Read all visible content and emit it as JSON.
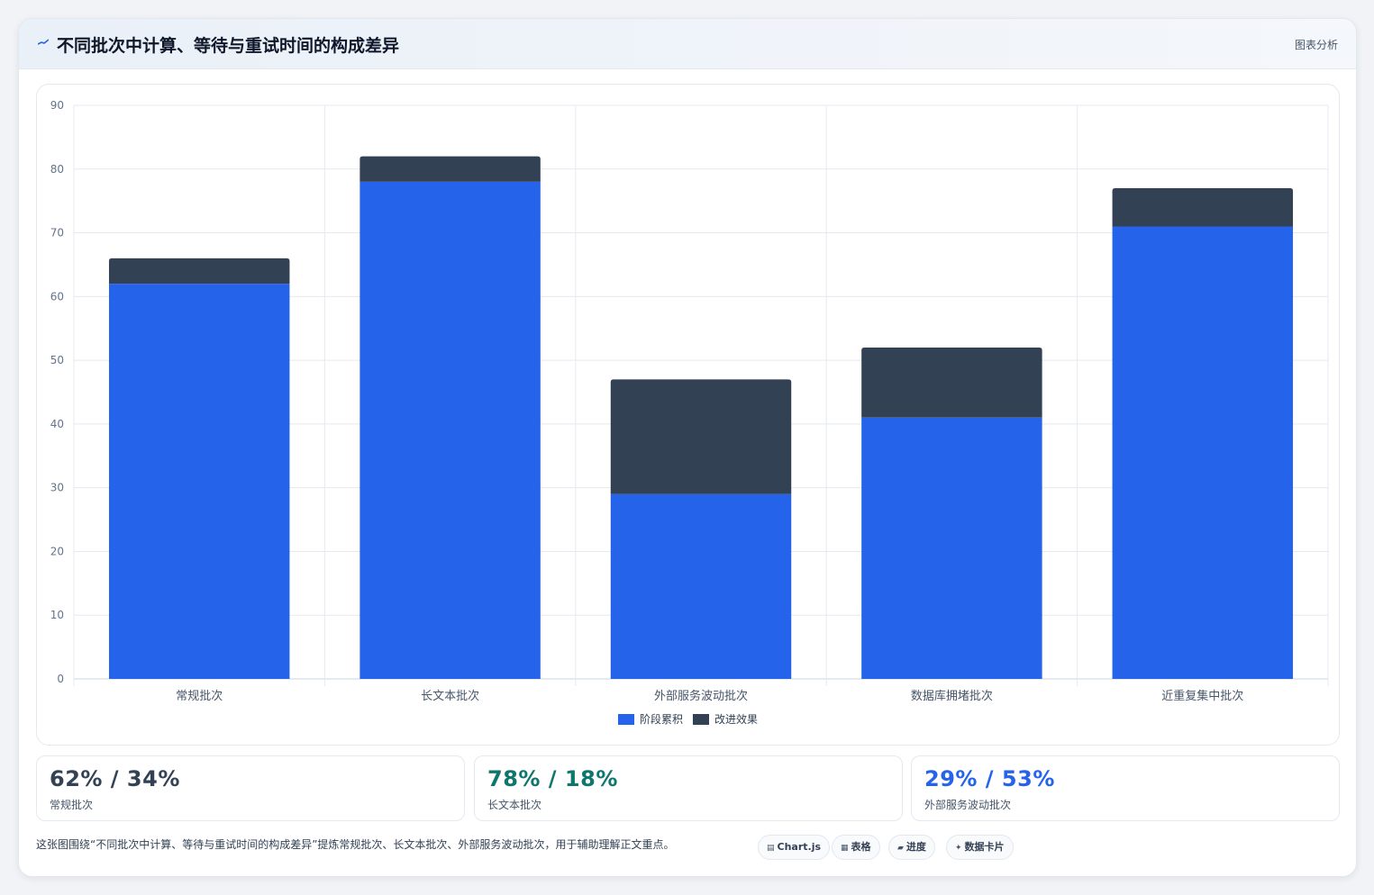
{
  "header": {
    "title": "不同批次中计算、等待与重试时间的构成差异",
    "tag": "图表分析",
    "icon": "sparkline-icon",
    "accent": "#2563eb"
  },
  "chart_data": {
    "type": "bar",
    "stacked": true,
    "categories": [
      "常规批次",
      "长文本批次",
      "外部服务波动批次",
      "数据库拥堵批次",
      "近重复集中批次"
    ],
    "series": [
      {
        "name": "阶段累积",
        "color": "#2563eb",
        "values": [
          62,
          78,
          29,
          41,
          71
        ]
      },
      {
        "name": "改进效果",
        "color": "#334155",
        "values": [
          4,
          4,
          18,
          11,
          6
        ]
      }
    ],
    "ylim": [
      0,
      90
    ],
    "yticks": [
      0,
      10,
      20,
      30,
      40,
      50,
      60,
      70,
      80,
      90
    ],
    "grid": true,
    "legend": "bottom"
  },
  "stats": [
    {
      "value": "62% / 34%",
      "label": "常规批次",
      "color": "#334155"
    },
    {
      "value": "78% / 18%",
      "label": "长文本批次",
      "color": "#0f766e"
    },
    {
      "value": "29% / 53%",
      "label": "外部服务波动批次",
      "color": "#2563eb"
    }
  ],
  "footer": {
    "text": "这张图围绕“不同批次中计算、等待与重试时间的构成差异”提炼常规批次、长文本批次、外部服务波动批次，用于辅助理解正文重点。"
  },
  "chips": [
    {
      "icon": "chart-icon",
      "glyph": "▤",
      "label": "Chart.js"
    },
    {
      "icon": "table-icon",
      "glyph": "▦",
      "label": "表格"
    },
    {
      "icon": "progress-icon",
      "glyph": "▰",
      "label": "进度"
    },
    {
      "icon": "data-card-icon",
      "glyph": "✦",
      "label": "数据卡片"
    }
  ]
}
